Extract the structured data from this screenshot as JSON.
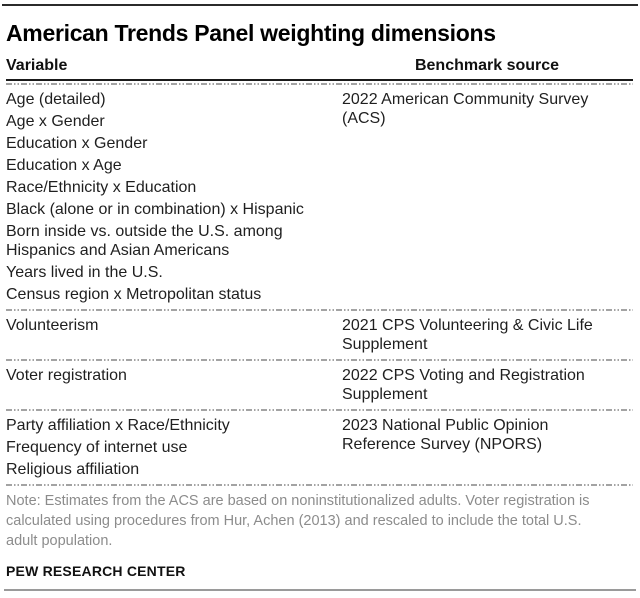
{
  "chart_data": {
    "type": "table",
    "title": "American Trends Panel weighting dimensions",
    "columns": [
      "Variable",
      "Benchmark source"
    ],
    "groups": [
      {
        "variables": [
          "Age (detailed)",
          "Age x Gender",
          "Education x Gender",
          "Education x Age",
          "Race/Ethnicity x Education",
          "Black (alone or in combination) x Hispanic",
          "Born inside vs. outside the U.S. among Hispanics and Asian Americans",
          "Years lived in the U.S.",
          "Census region x Metropolitan status"
        ],
        "source": "2022 American Community Survey (ACS)"
      },
      {
        "variables": [
          "Volunteerism"
        ],
        "source": "2021 CPS Volunteering & Civic Life Supplement"
      },
      {
        "variables": [
          "Voter registration"
        ],
        "source": "2022 CPS Voting and Registration Supplement"
      },
      {
        "variables": [
          "Party affiliation x Race/Ethnicity",
          "Frequency of internet use",
          "Religious affiliation"
        ],
        "source": "2023 National Public Opinion Reference Survey (NPORS)"
      }
    ],
    "note_lines": [
      "Note: Estimates from the ACS are based on noninstitutionalized adults. Voter registration is",
      "calculated using procedures from Hur, Achen (2013) and rescaled to include the total U.S.",
      "adult population."
    ],
    "footer": "PEW RESEARCH CENTER",
    "legend_position": "none",
    "grid": "off"
  },
  "colors": {
    "text": "#1f1f1f",
    "note_gray": "#8c8c8c",
    "top_rule": "#2b2b2b",
    "bottom_rule": "#9a9a9a",
    "divider_gray": "#a3a3a3",
    "header_underline": "#1a1a1a"
  }
}
